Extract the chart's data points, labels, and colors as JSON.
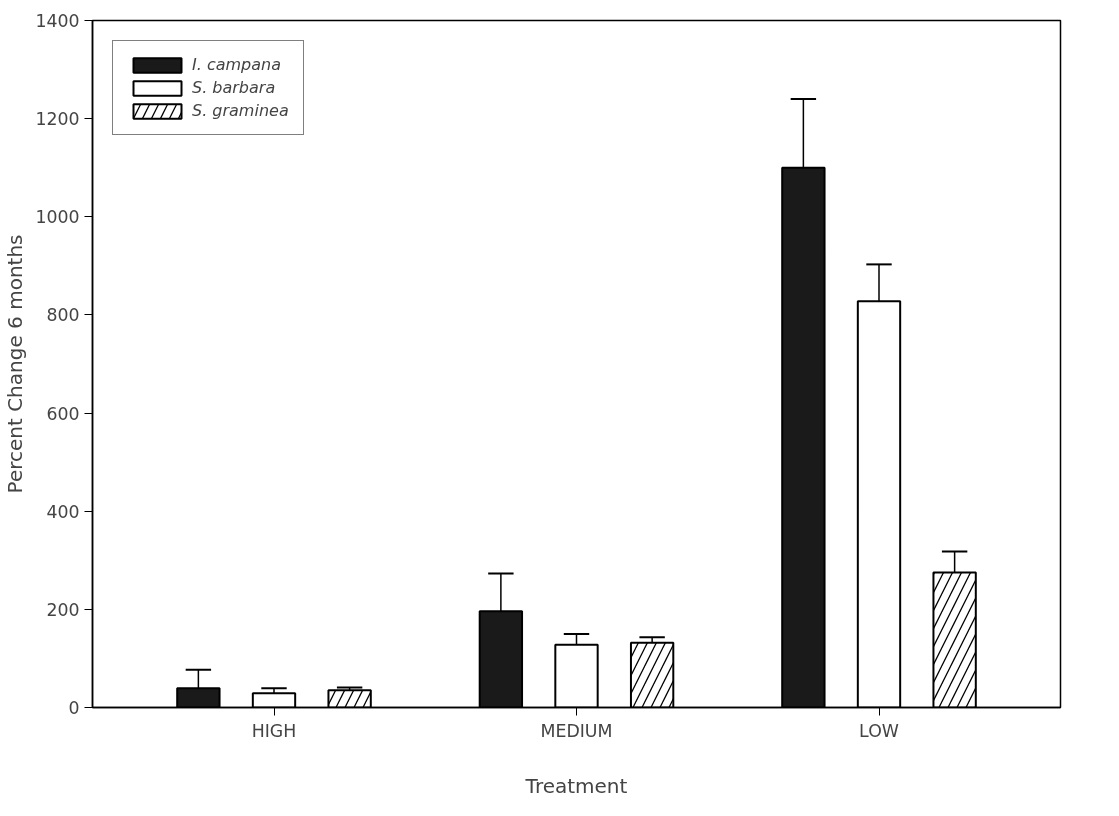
{
  "chart_data": {
    "type": "bar",
    "xlabel": "Treatment",
    "ylabel": "Percent Change 6 months",
    "categories": [
      "HIGH",
      "MEDIUM",
      "LOW"
    ],
    "series": [
      {
        "name": "I. campana",
        "color": "#1a1a1a",
        "values": [
          39,
          196,
          1100
        ],
        "errors": [
          38,
          77,
          140
        ]
      },
      {
        "name": "S. barbara",
        "color": "#ffffff",
        "values": [
          29,
          128,
          828
        ],
        "errors": [
          10,
          22,
          75
        ]
      },
      {
        "name": "S. graminea",
        "color": "#ffffff",
        "values": [
          35,
          132,
          275
        ],
        "errors": [
          6,
          11,
          43
        ]
      }
    ],
    "ylim": [
      0,
      1400
    ],
    "yticks": [
      0,
      200,
      400,
      600,
      800,
      1000,
      1200,
      1400
    ],
    "legend": "top left",
    "grid": false
  }
}
